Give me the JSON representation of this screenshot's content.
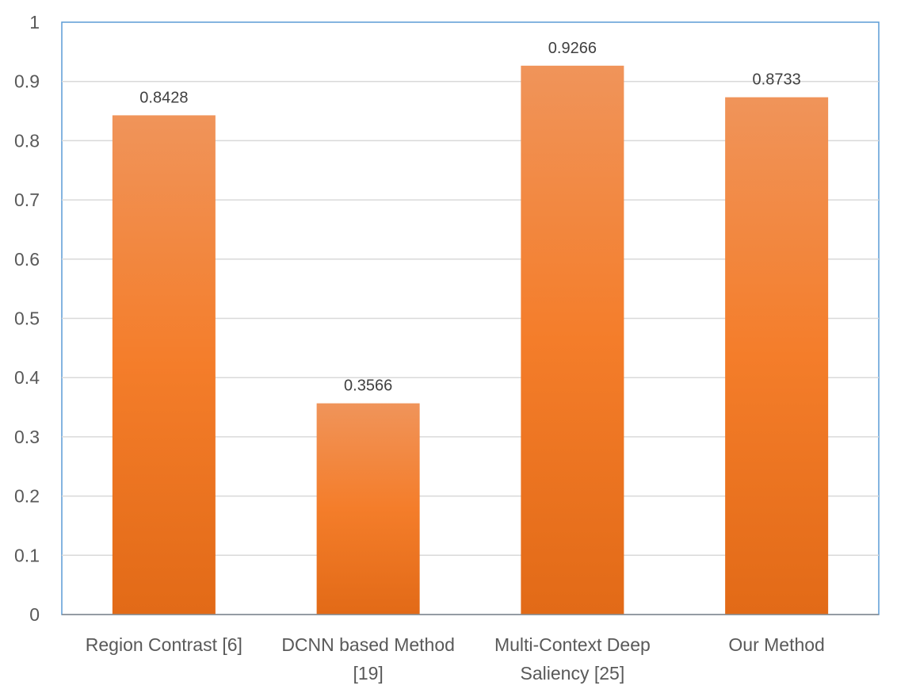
{
  "chart_data": {
    "type": "bar",
    "categories": [
      [
        "Region Contrast [6]"
      ],
      [
        "DCNN based Method",
        "[19]"
      ],
      [
        "Multi-Context Deep",
        "Saliency [25]"
      ],
      [
        "Our Method"
      ]
    ],
    "values": [
      0.8428,
      0.3566,
      0.9266,
      0.8733
    ],
    "data_labels": [
      "0.8428",
      "0.3566",
      "0.9266",
      "0.8733"
    ],
    "title": "",
    "xlabel": "",
    "ylabel": "",
    "ylim": [
      0,
      1
    ],
    "yticks": [
      "0",
      "0.1",
      "0.2",
      "0.3",
      "0.4",
      "0.5",
      "0.6",
      "0.7",
      "0.8",
      "0.9",
      "1"
    ],
    "grid": true,
    "legend": "none",
    "colors": {
      "bar_top": "#f0945a",
      "bar_mid": "#f47d2a",
      "bar_bottom": "#e26a17",
      "grid": "#d9d9d9",
      "frame": "#5b9bd5",
      "axis": "#8c8c8c"
    }
  }
}
